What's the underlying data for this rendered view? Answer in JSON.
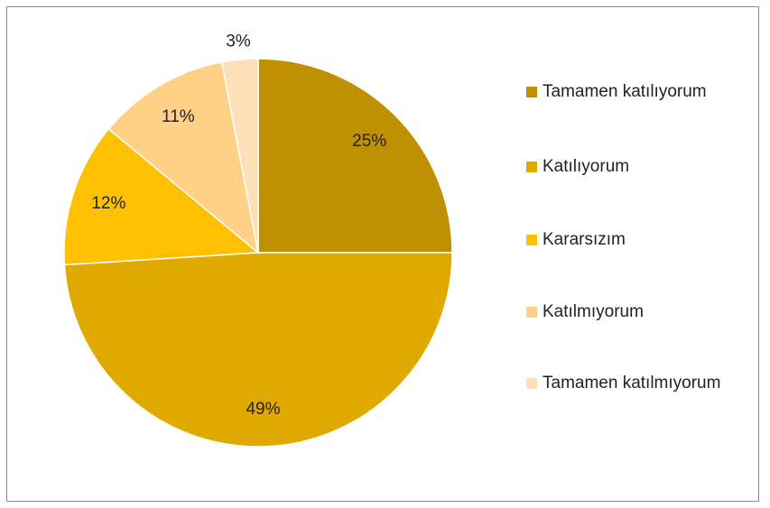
{
  "chart_data": {
    "type": "pie",
    "categories": [
      "Tamamen katılıyorum",
      "Katılıyorum",
      "Kararsızım",
      "Katılmıyorum",
      "Tamamen katılmıyorum"
    ],
    "values": [
      25,
      49,
      12,
      11,
      3
    ],
    "value_labels": [
      "25%",
      "49%",
      "12%",
      "11%",
      "3%"
    ],
    "colors": [
      "#bf9000",
      "#e0a900",
      "#ffc000",
      "#ffd187",
      "#fde0b8"
    ],
    "legend": "right"
  }
}
